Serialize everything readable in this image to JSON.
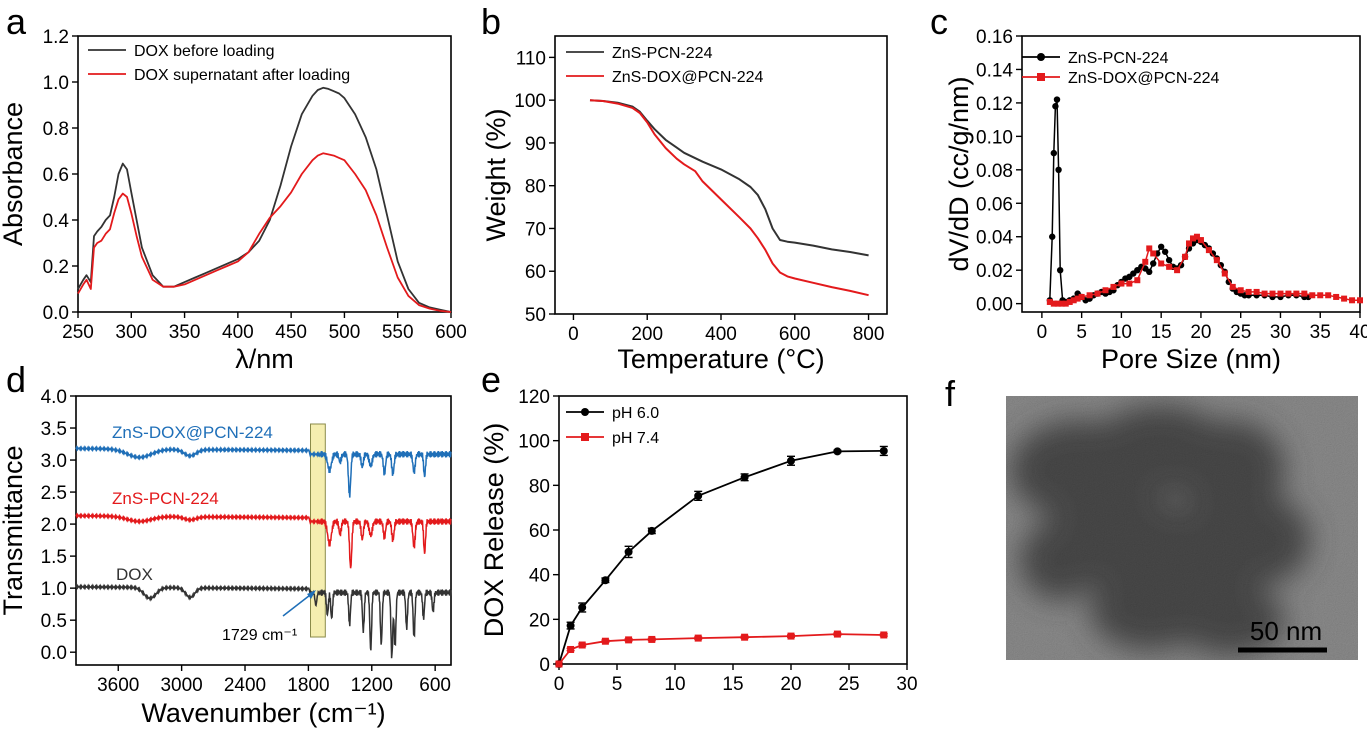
{
  "panels": [
    {
      "id": "a",
      "label": "a"
    },
    {
      "id": "b",
      "label": "b"
    },
    {
      "id": "c",
      "label": "c"
    },
    {
      "id": "d",
      "label": "d"
    },
    {
      "id": "e",
      "label": "e"
    },
    {
      "id": "f",
      "label": "f"
    }
  ],
  "tem": {
    "scale_label": "50 nm"
  },
  "colors": {
    "black": "#333333",
    "red": "#e31a1c",
    "blue": "#1f6fb8",
    "highlight": "#f5eeb0"
  },
  "chart_data": [
    {
      "panel": "a",
      "type": "line",
      "xlabel": "λ/nm",
      "ylabel": "Absorbance",
      "xlim": [
        250,
        600
      ],
      "ylim": [
        0,
        1.2
      ],
      "xticks": [
        250,
        300,
        350,
        400,
        450,
        500,
        550,
        600
      ],
      "yticks": [
        0.0,
        0.2,
        0.4,
        0.6,
        0.8,
        1.0,
        1.2
      ],
      "xtick_labels": [
        "250",
        "300",
        "350",
        "400",
        "450",
        "500",
        "550",
        "600"
      ],
      "ytick_labels": [
        "0.0",
        "0.2",
        "0.4",
        "0.6",
        "0.8",
        "1.0",
        "1.2"
      ],
      "legend": "top-left",
      "series": [
        {
          "name": "DOX before loading",
          "color": "#333333",
          "x": [
            250,
            255,
            258,
            262,
            265,
            268,
            272,
            276,
            280,
            284,
            288,
            292,
            296,
            300,
            305,
            310,
            320,
            330,
            340,
            350,
            360,
            370,
            380,
            390,
            400,
            410,
            420,
            430,
            440,
            450,
            460,
            470,
            475,
            480,
            485,
            490,
            495,
            500,
            510,
            520,
            530,
            540,
            550,
            560,
            570,
            580,
            590,
            600
          ],
          "y": [
            0.1,
            0.14,
            0.16,
            0.13,
            0.33,
            0.35,
            0.37,
            0.4,
            0.42,
            0.5,
            0.6,
            0.645,
            0.62,
            0.52,
            0.4,
            0.28,
            0.16,
            0.11,
            0.11,
            0.13,
            0.15,
            0.17,
            0.19,
            0.21,
            0.23,
            0.26,
            0.31,
            0.4,
            0.55,
            0.72,
            0.86,
            0.94,
            0.965,
            0.975,
            0.97,
            0.96,
            0.95,
            0.93,
            0.86,
            0.76,
            0.62,
            0.42,
            0.22,
            0.1,
            0.04,
            0.02,
            0.01,
            0.0
          ]
        },
        {
          "name": "DOX supernatant after loading",
          "color": "#e31a1c",
          "x": [
            250,
            255,
            258,
            262,
            265,
            268,
            272,
            276,
            280,
            284,
            288,
            292,
            296,
            300,
            305,
            310,
            320,
            330,
            340,
            350,
            360,
            370,
            380,
            390,
            400,
            410,
            420,
            430,
            440,
            450,
            460,
            470,
            475,
            480,
            485,
            490,
            495,
            500,
            510,
            520,
            530,
            540,
            550,
            560,
            570,
            580,
            590,
            600
          ],
          "y": [
            0.08,
            0.12,
            0.14,
            0.1,
            0.28,
            0.3,
            0.31,
            0.34,
            0.36,
            0.43,
            0.49,
            0.515,
            0.5,
            0.43,
            0.33,
            0.24,
            0.14,
            0.11,
            0.11,
            0.12,
            0.14,
            0.16,
            0.18,
            0.2,
            0.22,
            0.26,
            0.34,
            0.41,
            0.46,
            0.52,
            0.6,
            0.66,
            0.68,
            0.69,
            0.685,
            0.68,
            0.67,
            0.66,
            0.6,
            0.53,
            0.42,
            0.28,
            0.15,
            0.07,
            0.03,
            0.015,
            0.005,
            0.0
          ]
        }
      ]
    },
    {
      "panel": "b",
      "type": "line",
      "xlabel": "Temperature (°C)",
      "ylabel": "Weight (%)",
      "xlim": [
        -50,
        850
      ],
      "ylim": [
        50,
        115
      ],
      "xticks": [
        0,
        200,
        400,
        600,
        800
      ],
      "yticks": [
        50,
        60,
        70,
        80,
        90,
        100,
        110
      ],
      "xtick_labels": [
        "0",
        "200",
        "400",
        "600",
        "800"
      ],
      "ytick_labels": [
        "50",
        "60",
        "70",
        "80",
        "90",
        "100",
        "110"
      ],
      "legend": "top-left",
      "series": [
        {
          "name": "ZnS-PCN-224",
          "color": "#333333",
          "x": [
            45,
            80,
            120,
            160,
            180,
            200,
            220,
            250,
            280,
            300,
            350,
            400,
            450,
            480,
            500,
            520,
            540,
            560,
            580,
            600,
            650,
            700,
            750,
            800
          ],
          "y": [
            100,
            99.8,
            99.4,
            98.5,
            97.3,
            95.2,
            93.2,
            90.7,
            88.9,
            87.7,
            85.6,
            83.8,
            81.5,
            79.7,
            77.8,
            74.5,
            70.0,
            67.3,
            66.9,
            66.7,
            66.0,
            65.1,
            64.5,
            63.7
          ]
        },
        {
          "name": "ZnS-DOX@PCN-224",
          "color": "#e31a1c",
          "x": [
            45,
            80,
            120,
            160,
            180,
            200,
            220,
            250,
            280,
            300,
            330,
            350,
            400,
            450,
            480,
            500,
            520,
            540,
            560,
            580,
            600,
            650,
            700,
            750,
            800
          ],
          "y": [
            100,
            99.8,
            99.2,
            98.2,
            97.0,
            94.8,
            92.0,
            88.8,
            86.3,
            85.0,
            83.4,
            81.0,
            76.8,
            72.6,
            70.0,
            67.7,
            65.0,
            61.8,
            59.7,
            58.8,
            58.3,
            57.3,
            56.3,
            55.4,
            54.4
          ]
        }
      ]
    },
    {
      "panel": "c",
      "type": "line",
      "xlabel": "Pore Size (nm)",
      "ylabel": "dV/dD (cc/g/nm)",
      "xlim": [
        -2.5,
        40
      ],
      "ylim": [
        -0.005,
        0.16
      ],
      "xticks": [
        0,
        5,
        10,
        15,
        20,
        25,
        30,
        35,
        40
      ],
      "yticks": [
        0.0,
        0.02,
        0.04,
        0.06,
        0.08,
        0.1,
        0.12,
        0.14,
        0.16
      ],
      "xtick_labels": [
        "0",
        "5",
        "10",
        "15",
        "20",
        "25",
        "30",
        "35",
        "40"
      ],
      "ytick_labels": [
        "0.00",
        "0.02",
        "0.04",
        "0.06",
        "0.08",
        "0.10",
        "0.12",
        "0.14",
        "0.16"
      ],
      "legend": "top-right",
      "series": [
        {
          "name": "ZnS-PCN-224",
          "color": "#000000",
          "marker": "circle",
          "x": [
            1.0,
            1.3,
            1.5,
            1.7,
            1.9,
            2.1,
            2.3,
            2.6,
            3.0,
            3.5,
            4.0,
            4.5,
            5.0,
            5.5,
            6.0,
            6.5,
            7.0,
            7.5,
            8.0,
            8.5,
            9.0,
            9.5,
            10.0,
            10.5,
            11.0,
            11.5,
            12.0,
            12.5,
            13.0,
            13.5,
            14.0,
            14.5,
            15.0,
            15.5,
            16.0,
            16.5,
            17.0,
            17.5,
            18.0,
            18.5,
            19.0,
            19.5,
            20.0,
            20.5,
            21.0,
            21.5,
            22.0,
            22.5,
            23.0,
            23.5,
            24.0,
            24.5,
            25.0,
            25.5,
            26.0,
            27.0,
            28.0,
            29.0,
            30.0,
            31.0,
            32.0,
            33.0,
            33.5
          ],
          "y": [
            0.002,
            0.04,
            0.09,
            0.118,
            0.122,
            0.08,
            0.02,
            0.002,
            0.001,
            0.002,
            0.003,
            0.006,
            0.004,
            0.002,
            0.003,
            0.005,
            0.006,
            0.007,
            0.006,
            0.007,
            0.008,
            0.011,
            0.013,
            0.015,
            0.016,
            0.018,
            0.02,
            0.022,
            0.021,
            0.019,
            0.024,
            0.03,
            0.034,
            0.031,
            0.026,
            0.022,
            0.021,
            0.023,
            0.028,
            0.033,
            0.036,
            0.038,
            0.037,
            0.035,
            0.033,
            0.03,
            0.027,
            0.023,
            0.019,
            0.013,
            0.009,
            0.007,
            0.006,
            0.005,
            0.005,
            0.005,
            0.005,
            0.004,
            0.004,
            0.005,
            0.005,
            0.004,
            0.004
          ]
        },
        {
          "name": "ZnS-DOX@PCN-224",
          "color": "#e31a1c",
          "marker": "square",
          "x": [
            1.0,
            1.5,
            2.0,
            2.5,
            3.0,
            3.5,
            4.0,
            4.5,
            5.0,
            6.0,
            7.0,
            8.0,
            9.0,
            10.0,
            11.0,
            12.0,
            13.0,
            13.5,
            14.0,
            15.0,
            16.0,
            17.0,
            18.0,
            18.5,
            19.0,
            19.5,
            20.0,
            21.0,
            22.0,
            23.0,
            24.0,
            25.0,
            26.0,
            27.0,
            28.0,
            29.0,
            30.0,
            31.0,
            32.0,
            33.0,
            34.0,
            35.0,
            36.0,
            37.0,
            38.0,
            39.0,
            40.0
          ],
          "y": [
            0.001,
            0.0,
            0.0,
            0.0,
            0.0,
            0.001,
            0.002,
            0.003,
            0.004,
            0.005,
            0.006,
            0.008,
            0.01,
            0.012,
            0.012,
            0.014,
            0.025,
            0.033,
            0.03,
            0.024,
            0.022,
            0.02,
            0.028,
            0.036,
            0.039,
            0.04,
            0.038,
            0.032,
            0.026,
            0.018,
            0.01,
            0.008,
            0.007,
            0.007,
            0.006,
            0.006,
            0.006,
            0.006,
            0.006,
            0.006,
            0.005,
            0.005,
            0.005,
            0.004,
            0.003,
            0.002,
            0.002
          ]
        }
      ]
    },
    {
      "panel": "d",
      "type": "line",
      "xlabel": "Wavenumber (cm⁻¹)",
      "ylabel": "Transmittance",
      "xlim": [
        4000,
        450
      ],
      "ylim": [
        -0.2,
        4.0
      ],
      "xticks": [
        3600,
        3000,
        2400,
        1800,
        1200,
        600
      ],
      "yticks": [
        0.0,
        0.5,
        1.0,
        1.5,
        2.0,
        2.5,
        3.0,
        3.5,
        4.0
      ],
      "xtick_labels": [
        "3600",
        "3000",
        "2400",
        "1800",
        "1200",
        "600"
      ],
      "ytick_labels": [
        "0.0",
        "0.5",
        "1.0",
        "1.5",
        "2.0",
        "2.5",
        "3.0",
        "3.5",
        "4.0"
      ],
      "highlight_range": [
        1780,
        1640
      ],
      "annotation": {
        "text": "1729 cm⁻¹",
        "x": 1729
      },
      "series_labels": [
        "ZnS-DOX@PCN-224",
        "ZnS-PCN-224",
        "DOX"
      ],
      "series": [
        {
          "name": "ZnS-DOX@PCN-224",
          "color": "#1f6fb8",
          "baseline": 3.13,
          "dips": [
            [
              3400,
              0.13,
              160
            ],
            [
              2920,
              0.1,
              80
            ],
            [
              1600,
              0.25,
              25
            ],
            [
              1500,
              0.12,
              15
            ],
            [
              1410,
              0.65,
              15
            ],
            [
              1290,
              0.2,
              15
            ],
            [
              1210,
              0.18,
              20
            ],
            [
              1080,
              0.3,
              15
            ],
            [
              1000,
              0.32,
              15
            ],
            [
              800,
              0.28,
              15
            ],
            [
              700,
              0.35,
              12
            ]
          ]
        },
        {
          "name": "ZnS-PCN-224",
          "color": "#e31a1c",
          "baseline": 2.08,
          "dips": [
            [
              3400,
              0.08,
              160
            ],
            [
              2920,
              0.05,
              80
            ],
            [
              1600,
              0.35,
              25
            ],
            [
              1500,
              0.2,
              15
            ],
            [
              1400,
              0.72,
              15
            ],
            [
              1290,
              0.28,
              15
            ],
            [
              1210,
              0.22,
              20
            ],
            [
              1080,
              0.25,
              15
            ],
            [
              1000,
              0.3,
              15
            ],
            [
              800,
              0.4,
              15
            ],
            [
              700,
              0.5,
              12
            ]
          ]
        },
        {
          "name": "DOX",
          "color": "#333333",
          "baseline": 0.97,
          "dips": [
            [
              3300,
              0.17,
              80
            ],
            [
              2920,
              0.15,
              60
            ],
            [
              1729,
              0.2,
              12
            ],
            [
              1620,
              0.35,
              12
            ],
            [
              1580,
              0.4,
              12
            ],
            [
              1410,
              0.5,
              12
            ],
            [
              1280,
              0.6,
              12
            ],
            [
              1210,
              0.9,
              12
            ],
            [
              1110,
              0.8,
              12
            ],
            [
              1010,
              1.0,
              12
            ],
            [
              980,
              0.85,
              12
            ],
            [
              870,
              0.55,
              12
            ],
            [
              800,
              0.7,
              12
            ],
            [
              710,
              0.4,
              12
            ],
            [
              620,
              0.3,
              12
            ]
          ]
        }
      ]
    },
    {
      "panel": "e",
      "type": "line",
      "xlabel": "",
      "ylabel": "DOX Release (%)",
      "xlim": [
        0,
        30
      ],
      "ylim": [
        0,
        120
      ],
      "xticks": [
        0,
        5,
        10,
        15,
        20,
        25,
        30
      ],
      "yticks": [
        0,
        20,
        40,
        60,
        80,
        100,
        120
      ],
      "xtick_labels": [
        "0",
        "5",
        "10",
        "15",
        "20",
        "25",
        "30"
      ],
      "ytick_labels": [
        "0",
        "20",
        "40",
        "60",
        "80",
        "100",
        "120"
      ],
      "legend": "top-left",
      "series": [
        {
          "name": "pH 6.0",
          "color": "#000000",
          "marker": "circle",
          "x": [
            0,
            1,
            2,
            4,
            6,
            8,
            12,
            16,
            20,
            24,
            28
          ],
          "y": [
            0,
            17.2,
            25.3,
            37.5,
            50.2,
            59.6,
            75.3,
            83.6,
            91.0,
            95.2,
            95.4
          ],
          "err": [
            0,
            1.5,
            2.0,
            1.0,
            2.5,
            1.2,
            2.0,
            1.5,
            2.0,
            0.5,
            2.0
          ]
        },
        {
          "name": "pH 7.4",
          "color": "#e31a1c",
          "marker": "square",
          "x": [
            0,
            1,
            2,
            4,
            6,
            8,
            12,
            16,
            20,
            24,
            28
          ],
          "y": [
            0,
            6.5,
            8.5,
            10.2,
            10.8,
            11.0,
            11.6,
            12.0,
            12.5,
            13.4,
            13.0
          ],
          "err": [
            0,
            0.5,
            0.5,
            0.5,
            0.5,
            0.5,
            0.5,
            0.5,
            0.5,
            0.5,
            0.5
          ]
        }
      ]
    }
  ]
}
